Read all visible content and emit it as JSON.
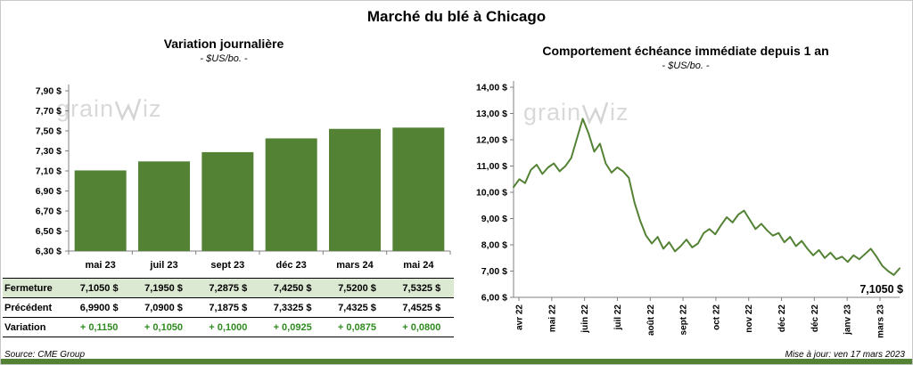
{
  "page": {
    "title": "Marché du blé à Chicago",
    "source": "Source: CME Group",
    "updated": "Mise à jour: ven 17 mars 2023",
    "watermark": {
      "prefix": "grain",
      "suffix": "iz"
    },
    "colors": {
      "green": "#548235",
      "highlight_row": "#dbe8d2",
      "variation_text": "#2f8b1f",
      "watermark": "#d9d9d9",
      "axis": "#808080"
    }
  },
  "chart_data": [
    {
      "type": "bar",
      "title": "Variation journalière",
      "subtitle": "- $US/bo. -",
      "categories": [
        "mai 23",
        "juil 23",
        "sept 23",
        "déc 23",
        "mars 24",
        "mai 24"
      ],
      "values": [
        7.105,
        7.195,
        7.2875,
        7.425,
        7.52,
        7.5325
      ],
      "ylim": [
        6.3,
        7.9
      ],
      "ytick_step": 0.2,
      "ytick_labels": [
        "7,90 $",
        "7,70 $",
        "7,50 $",
        "7,30 $",
        "7,10 $",
        "6,90 $",
        "6,70 $",
        "6,50 $",
        "6,30 $"
      ],
      "color": "#548235",
      "grid": false,
      "legend": false
    },
    {
      "type": "line",
      "title": "Comportement échéance immédiate depuis 1 an",
      "subtitle": "- $US/bo. -",
      "x_tick_labels": [
        "avr 22",
        "mai 22",
        "juin 22",
        "juil 22",
        "août 22",
        "sept 22",
        "oct 22",
        "nov 22",
        "déc 22",
        "déc 22",
        "janv 23",
        "mars 23"
      ],
      "values": [
        10.2,
        10.5,
        10.35,
        10.85,
        11.05,
        10.7,
        10.95,
        11.1,
        10.8,
        11.0,
        11.3,
        12.05,
        12.8,
        12.25,
        11.55,
        11.85,
        11.1,
        10.75,
        10.95,
        10.8,
        10.55,
        9.6,
        8.9,
        8.35,
        8.05,
        8.3,
        7.85,
        8.1,
        7.75,
        7.95,
        8.2,
        7.9,
        8.05,
        8.45,
        8.6,
        8.4,
        8.75,
        9.05,
        8.85,
        9.15,
        9.3,
        8.95,
        8.6,
        8.8,
        8.55,
        8.35,
        8.45,
        8.1,
        8.3,
        7.95,
        8.15,
        7.85,
        7.6,
        7.8,
        7.5,
        7.7,
        7.45,
        7.55,
        7.35,
        7.6,
        7.45,
        7.65,
        7.85,
        7.55,
        7.2,
        7.0,
        6.85,
        7.105
      ],
      "ylim": [
        6.0,
        14.0
      ],
      "ytick_step": 1.0,
      "ytick_labels": [
        "14,00 $",
        "13,00 $",
        "12,00 $",
        "11,00 $",
        "10,00 $",
        "9,00 $",
        "8,00 $",
        "7,00 $",
        "6,00 $"
      ],
      "annotation": "7,1050 $",
      "color": "#548235",
      "grid": false,
      "legend": false
    }
  ],
  "table": {
    "rows": [
      {
        "label": "Fermeture",
        "values": [
          "7,1050 $",
          "7,1950 $",
          "7,2875 $",
          "7,4250 $",
          "7,5200 $",
          "7,5325 $"
        ],
        "highlight": true,
        "green": false
      },
      {
        "label": "Précédent",
        "values": [
          "6,9900 $",
          "7,0900 $",
          "7,1875 $",
          "7,3325 $",
          "7,4325 $",
          "7,4525 $"
        ],
        "highlight": false,
        "green": false
      },
      {
        "label": "Variation",
        "values": [
          "+ 0,1150",
          "+ 0,1050",
          "+ 0,1000",
          "+ 0,0925",
          "+ 0,0875",
          "+ 0,0800"
        ],
        "highlight": false,
        "green": true
      }
    ]
  }
}
